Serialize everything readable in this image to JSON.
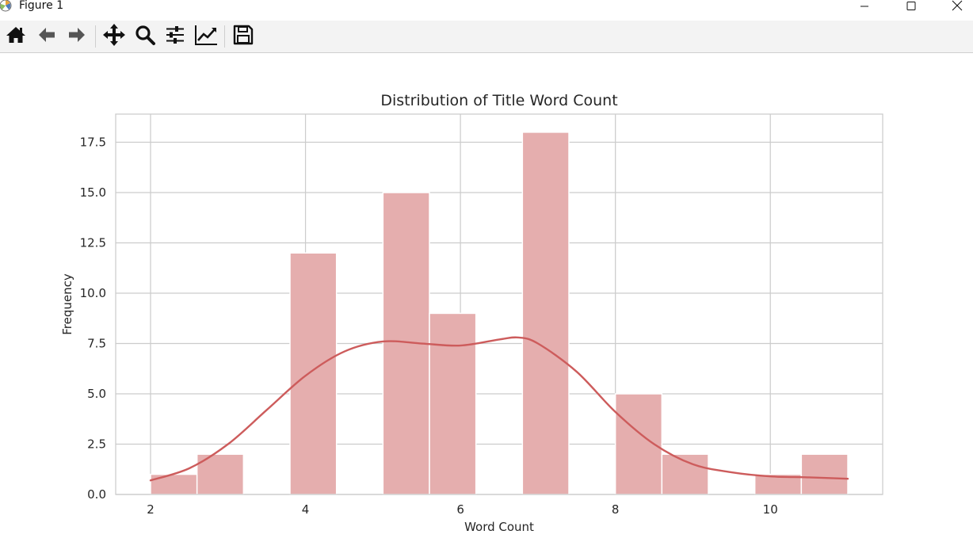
{
  "window": {
    "title": "Figure 1"
  },
  "toolbar": {
    "buttons": [
      {
        "name": "home",
        "icon": "home-icon"
      },
      {
        "name": "back",
        "icon": "arrow-left-icon"
      },
      {
        "name": "forward",
        "icon": "arrow-right-icon"
      },
      {
        "name": "pan",
        "icon": "move-icon"
      },
      {
        "name": "zoom",
        "icon": "search-icon"
      },
      {
        "name": "configure-subplots",
        "icon": "sliders-icon"
      },
      {
        "name": "edit-axis",
        "icon": "trend-line-icon"
      },
      {
        "name": "save",
        "icon": "floppy-disk-icon"
      }
    ]
  },
  "colors": {
    "bar_fill": "#e5aeae",
    "bar_edge": "#ffffff",
    "kde_line": "#cd5c5c",
    "grid": "#cccccc",
    "axis_text": "#262626"
  },
  "chart_data": {
    "type": "bar",
    "title": "Distribution of Title Word Count",
    "xlabel": "Word Count",
    "ylabel": "Frequency",
    "xlim": [
      1.55,
      11.45
    ],
    "ylim": [
      0,
      18.9
    ],
    "grid": true,
    "x_ticks": [
      2,
      4,
      6,
      8,
      10
    ],
    "y_ticks": [
      0.0,
      2.5,
      5.0,
      7.5,
      10.0,
      12.5,
      15.0,
      17.5
    ],
    "x_tick_labels": [
      "2",
      "4",
      "6",
      "8",
      "10"
    ],
    "y_tick_labels": [
      "0.0",
      "2.5",
      "5.0",
      "7.5",
      "10.0",
      "12.5",
      "15.0",
      "17.5"
    ],
    "bins": [
      {
        "x0": 2.0,
        "x1": 2.6,
        "count": 1
      },
      {
        "x0": 2.6,
        "x1": 3.2,
        "count": 2
      },
      {
        "x0": 3.8,
        "x1": 4.4,
        "count": 12
      },
      {
        "x0": 5.0,
        "x1": 5.6,
        "count": 15
      },
      {
        "x0": 5.6,
        "x1": 6.2,
        "count": 9
      },
      {
        "x0": 6.8,
        "x1": 7.4,
        "count": 18
      },
      {
        "x0": 8.0,
        "x1": 8.6,
        "count": 5
      },
      {
        "x0": 8.6,
        "x1": 9.2,
        "count": 2
      },
      {
        "x0": 9.8,
        "x1": 10.4,
        "count": 1
      },
      {
        "x0": 10.4,
        "x1": 11.0,
        "count": 2
      }
    ],
    "kde": {
      "x": [
        2.0,
        2.5,
        3.0,
        3.5,
        4.0,
        4.5,
        5.0,
        5.5,
        6.0,
        6.5,
        6.75,
        7.0,
        7.5,
        8.0,
        8.5,
        9.0,
        9.5,
        10.0,
        10.5,
        11.0
      ],
      "y": [
        0.7,
        1.3,
        2.5,
        4.2,
        5.9,
        7.1,
        7.6,
        7.5,
        7.4,
        7.7,
        7.8,
        7.5,
        6.1,
        4.1,
        2.5,
        1.5,
        1.1,
        0.9,
        0.85,
        0.78
      ]
    }
  }
}
